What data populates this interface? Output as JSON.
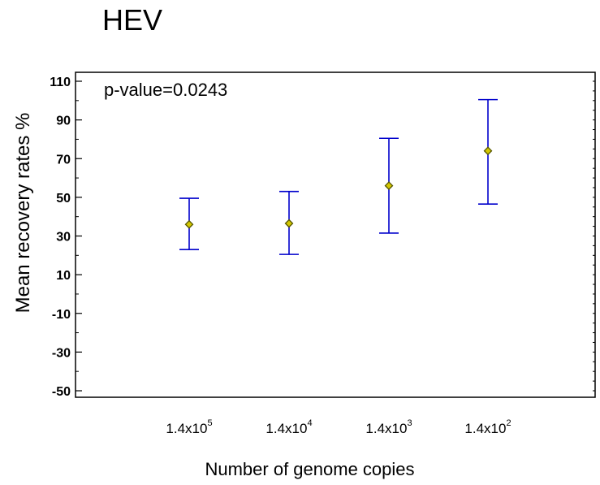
{
  "chart_data": {
    "type": "scatter",
    "title": "HEV",
    "xlabel": "Number of genome copies",
    "ylabel": "Mean recovery rates %",
    "annotation": "p-value=0.0243",
    "ylim": [
      -55,
      115
    ],
    "yticks": [
      "110",
      "90",
      "70",
      "50",
      "30",
      "10",
      "-10",
      "-30",
      "-50"
    ],
    "categories": [
      {
        "base": "1.4x10",
        "exp": "5"
      },
      {
        "base": "1.4x10",
        "exp": "4"
      },
      {
        "base": "1.4x10",
        "exp": "3"
      },
      {
        "base": "1.4x10",
        "exp": "2"
      }
    ],
    "series": [
      {
        "points": [
          {
            "mean": 36,
            "lower": 23,
            "upper": 49.5
          },
          {
            "mean": 36.5,
            "lower": 20.5,
            "upper": 53
          },
          {
            "mean": 56,
            "lower": 31.5,
            "upper": 80.5
          },
          {
            "mean": 74,
            "lower": 46.5,
            "upper": 100.5
          }
        ]
      }
    ],
    "colors": {
      "errorbar": "#0000cc",
      "marker_stroke": "#555500",
      "marker_fill": "#d4c800"
    },
    "grid": false
  }
}
